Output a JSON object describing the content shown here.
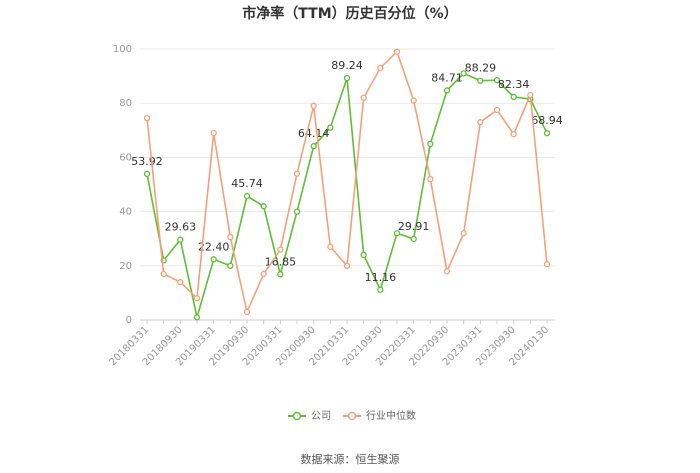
{
  "chart_data": {
    "type": "line",
    "title": "市净率（TTM）历史百分位（%）",
    "categories": [
      "20180331",
      null,
      "20180930",
      null,
      "20190331",
      null,
      "20190930",
      null,
      "20200331",
      null,
      "20200930",
      null,
      "20210331",
      null,
      "20210930",
      null,
      "20220331",
      null,
      "20220930",
      null,
      "20230331",
      null,
      "20230930",
      null,
      "20240130"
    ],
    "series": [
      {
        "name": "公司",
        "color": "#5dbf34",
        "values": [
          53.92,
          22,
          29.63,
          1,
          22.4,
          20,
          45.74,
          42,
          16.85,
          40,
          64.14,
          71,
          89.24,
          24,
          11.16,
          32,
          29.91,
          65,
          84.71,
          91,
          88.29,
          88.5,
          82.34,
          81.5,
          68.94
        ],
        "value_labels": [
          "53.92",
          null,
          "29.63",
          null,
          "22.40",
          null,
          "45.74",
          null,
          "16.85",
          null,
          "64.14",
          null,
          "89.24",
          null,
          "11.16",
          null,
          "29.91",
          null,
          "84.71",
          null,
          "88.29",
          null,
          "82.34",
          null,
          "68.94"
        ]
      },
      {
        "name": "行业中位数",
        "color": "#f5a07a",
        "values": [
          74.5,
          17,
          14,
          8,
          69,
          30.6,
          3,
          17,
          26,
          54,
          79,
          27,
          20,
          82,
          93,
          99,
          81,
          52,
          18,
          32,
          73,
          77.5,
          68.6,
          83,
          20.6
        ]
      }
    ],
    "ylim": [
      0,
      100
    ],
    "yticks": [
      0,
      20,
      40,
      60,
      80,
      100
    ],
    "grid": true,
    "legend": "bottom",
    "source": "数据来源：恒生聚源"
  }
}
